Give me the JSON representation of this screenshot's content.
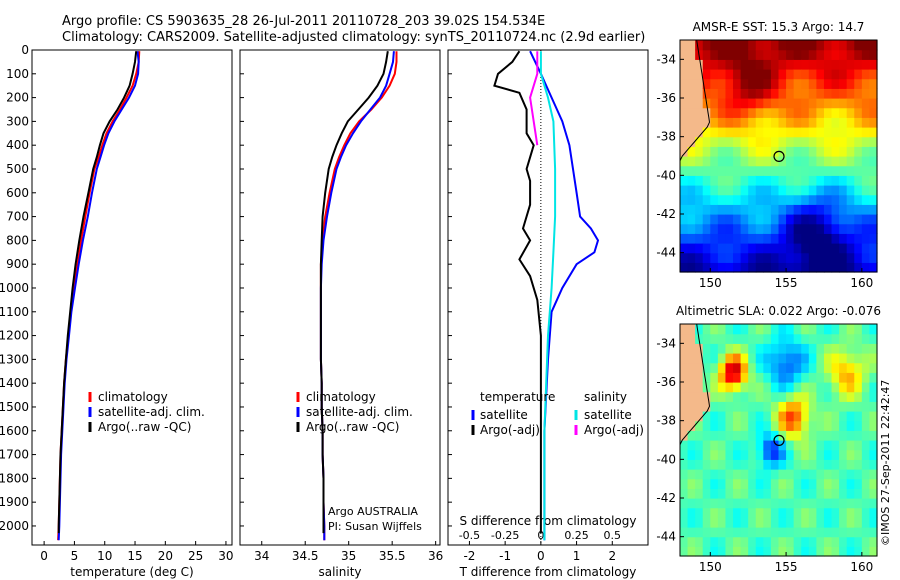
{
  "header": {
    "title_line1": "Argo profile: CS 5903635_28 26-Jul-2011 20110728_203 39.02S 154.534E",
    "title_line2": "Climatology: CARS2009. Satellite-adjusted climatology: synTS_20110724.nc (2.9d earlier)"
  },
  "credits": {
    "agency": "Argo AUSTRALIA",
    "pi": "PI: Susan Wijffels",
    "stamp": "©IMOS 27-Sep-2011 22:42:47"
  },
  "colors": {
    "climatology": "#ff0000",
    "satellite": "#0000ff",
    "argo": "#000000",
    "temp_sat": "#0000ff",
    "temp_argo": "#000000",
    "sal_sat": "#00e5e5",
    "sal_argo": "#ff00ff",
    "land": "#f4b98a"
  },
  "chart_data": [
    {
      "id": "temperature",
      "type": "line",
      "xlabel": "temperature (deg C)",
      "ylabel": "",
      "xlim": [
        -2,
        31
      ],
      "ylim": [
        2080,
        0
      ],
      "xticks": [
        0,
        5,
        10,
        15,
        20,
        25,
        30
      ],
      "yticks": [
        0,
        100,
        200,
        300,
        400,
        500,
        600,
        700,
        800,
        900,
        1000,
        1100,
        1200,
        1300,
        1400,
        1500,
        1600,
        1700,
        1800,
        1900,
        2000
      ],
      "legend": [
        "climatology",
        "satellite-adj. clim.",
        "Argo(..raw -QC)"
      ],
      "series": [
        {
          "name": "climatology",
          "color": "#ff0000",
          "points": [
            [
              15.7,
              5
            ],
            [
              15.6,
              50
            ],
            [
              15.2,
              100
            ],
            [
              14.6,
              150
            ],
            [
              13.6,
              200
            ],
            [
              12.5,
              250
            ],
            [
              11.3,
              300
            ],
            [
              10.3,
              350
            ],
            [
              9.6,
              400
            ],
            [
              9.0,
              450
            ],
            [
              8.3,
              500
            ],
            [
              7.5,
              600
            ],
            [
              6.8,
              700
            ],
            [
              6.1,
              800
            ],
            [
              5.5,
              900
            ],
            [
              4.9,
              1000
            ],
            [
              4.4,
              1100
            ],
            [
              4.0,
              1200
            ],
            [
              3.6,
              1300
            ],
            [
              3.3,
              1400
            ],
            [
              3.1,
              1500
            ],
            [
              2.9,
              1600
            ],
            [
              2.7,
              1700
            ],
            [
              2.6,
              1800
            ],
            [
              2.5,
              1900
            ],
            [
              2.4,
              2000
            ],
            [
              2.3,
              2060
            ]
          ]
        },
        {
          "name": "satellite-adj. clim.",
          "color": "#0000ff",
          "points": [
            [
              15.4,
              5
            ],
            [
              15.6,
              50
            ],
            [
              15.5,
              100
            ],
            [
              15.0,
              150
            ],
            [
              14.0,
              200
            ],
            [
              12.8,
              250
            ],
            [
              11.6,
              300
            ],
            [
              10.6,
              350
            ],
            [
              9.9,
              400
            ],
            [
              9.3,
              450
            ],
            [
              8.7,
              500
            ],
            [
              7.9,
              600
            ],
            [
              7.2,
              700
            ],
            [
              6.4,
              800
            ],
            [
              5.7,
              900
            ],
            [
              5.1,
              1000
            ],
            [
              4.5,
              1100
            ],
            [
              4.1,
              1200
            ],
            [
              3.7,
              1300
            ],
            [
              3.4,
              1400
            ],
            [
              3.2,
              1500
            ],
            [
              3.0,
              1600
            ],
            [
              2.8,
              1700
            ],
            [
              2.7,
              1800
            ],
            [
              2.6,
              1900
            ],
            [
              2.5,
              2000
            ],
            [
              2.4,
              2060
            ]
          ]
        },
        {
          "name": "Argo(..raw -QC)",
          "color": "#000000",
          "points": [
            [
              15.2,
              5
            ],
            [
              15.0,
              50
            ],
            [
              14.6,
              100
            ],
            [
              14.1,
              150
            ],
            [
              13.2,
              200
            ],
            [
              12.1,
              250
            ],
            [
              10.8,
              300
            ],
            [
              9.8,
              350
            ],
            [
              9.2,
              400
            ],
            [
              8.7,
              450
            ],
            [
              8.1,
              500
            ],
            [
              7.3,
              600
            ],
            [
              6.5,
              700
            ],
            [
              5.8,
              800
            ],
            [
              5.2,
              900
            ],
            [
              4.7,
              1000
            ],
            [
              4.3,
              1100
            ],
            [
              3.9,
              1200
            ],
            [
              3.6,
              1300
            ],
            [
              3.3,
              1400
            ],
            [
              3.1,
              1500
            ],
            [
              2.9,
              1600
            ],
            [
              2.7,
              1700
            ],
            [
              2.6,
              1800
            ],
            [
              2.5,
              1900
            ],
            [
              2.4,
              2000
            ],
            [
              2.4,
              2030
            ]
          ]
        }
      ]
    },
    {
      "id": "salinity",
      "type": "line",
      "xlabel": "salinity",
      "ylabel": "",
      "xlim": [
        33.75,
        36.05
      ],
      "ylim": [
        2080,
        0
      ],
      "xticks": [
        34,
        34.5,
        35,
        35.5,
        36
      ],
      "legend": [
        "climatology",
        "satellite-adj. clim.",
        "Argo(..raw -QC)"
      ],
      "series": [
        {
          "name": "climatology",
          "color": "#ff0000",
          "points": [
            [
              35.55,
              5
            ],
            [
              35.55,
              50
            ],
            [
              35.53,
              100
            ],
            [
              35.47,
              150
            ],
            [
              35.38,
              200
            ],
            [
              35.26,
              250
            ],
            [
              35.12,
              300
            ],
            [
              35.02,
              350
            ],
            [
              34.95,
              400
            ],
            [
              34.89,
              450
            ],
            [
              34.84,
              500
            ],
            [
              34.78,
              600
            ],
            [
              34.73,
              700
            ],
            [
              34.7,
              800
            ],
            [
              34.68,
              900
            ],
            [
              34.68,
              1000
            ],
            [
              34.68,
              1100
            ],
            [
              34.68,
              1200
            ],
            [
              34.68,
              1300
            ],
            [
              34.69,
              1400
            ],
            [
              34.69,
              1500
            ],
            [
              34.7,
              1600
            ],
            [
              34.7,
              1700
            ],
            [
              34.71,
              1800
            ],
            [
              34.71,
              1900
            ],
            [
              34.72,
              2000
            ],
            [
              34.72,
              2060
            ]
          ]
        },
        {
          "name": "satellite-adj. clim.",
          "color": "#0000ff",
          "points": [
            [
              35.52,
              5
            ],
            [
              35.51,
              50
            ],
            [
              35.47,
              100
            ],
            [
              35.43,
              150
            ],
            [
              35.36,
              200
            ],
            [
              35.25,
              250
            ],
            [
              35.14,
              300
            ],
            [
              35.05,
              350
            ],
            [
              34.97,
              400
            ],
            [
              34.91,
              450
            ],
            [
              34.86,
              500
            ],
            [
              34.8,
              600
            ],
            [
              34.75,
              700
            ],
            [
              34.71,
              800
            ],
            [
              34.69,
              900
            ],
            [
              34.68,
              1000
            ],
            [
              34.68,
              1100
            ],
            [
              34.68,
              1200
            ],
            [
              34.68,
              1300
            ],
            [
              34.69,
              1400
            ],
            [
              34.69,
              1500
            ],
            [
              34.7,
              1600
            ],
            [
              34.7,
              1700
            ],
            [
              34.71,
              1800
            ],
            [
              34.71,
              1900
            ],
            [
              34.72,
              2000
            ],
            [
              34.72,
              2060
            ]
          ]
        },
        {
          "name": "Argo(..raw -QC)",
          "color": "#000000",
          "points": [
            [
              35.45,
              5
            ],
            [
              35.43,
              50
            ],
            [
              35.4,
              100
            ],
            [
              35.33,
              150
            ],
            [
              35.23,
              200
            ],
            [
              35.11,
              250
            ],
            [
              34.99,
              300
            ],
            [
              34.92,
              350
            ],
            [
              34.86,
              400
            ],
            [
              34.81,
              450
            ],
            [
              34.77,
              500
            ],
            [
              34.73,
              600
            ],
            [
              34.7,
              700
            ],
            [
              34.69,
              800
            ],
            [
              34.68,
              900
            ],
            [
              34.68,
              1000
            ],
            [
              34.68,
              1100
            ],
            [
              34.68,
              1200
            ],
            [
              34.68,
              1300
            ],
            [
              34.69,
              1400
            ],
            [
              34.69,
              1500
            ],
            [
              34.7,
              1600
            ],
            [
              34.7,
              1700
            ],
            [
              34.71,
              1800
            ],
            [
              34.71,
              1900
            ],
            [
              34.71,
              2000
            ],
            [
              34.71,
              2030
            ]
          ]
        }
      ]
    },
    {
      "id": "difference",
      "type": "line",
      "xlabel": "T difference from climatology",
      "top_label": "S difference from climatology",
      "xlim": [
        -2.6,
        3.0
      ],
      "ylim": [
        2080,
        0
      ],
      "xticks": [
        -2,
        -1,
        0,
        1,
        2
      ],
      "s_ticks": [
        -0.5,
        -0.25,
        0,
        0.25,
        0.5
      ],
      "s_scale": 4,
      "legend_temperature": {
        "title": "temperature",
        "items": [
          "satellite",
          "Argo(-adj)"
        ]
      },
      "legend_salinity": {
        "title": "salinity",
        "items": [
          "satellite",
          "Argo(-adj)"
        ]
      },
      "series": [
        {
          "name": "temperature satellite",
          "color": "#0000ff",
          "points": [
            [
              -0.3,
              5
            ],
            [
              0.0,
              100
            ],
            [
              0.3,
              200
            ],
            [
              0.6,
              300
            ],
            [
              0.8,
              400
            ],
            [
              0.9,
              500
            ],
            [
              1.0,
              600
            ],
            [
              1.1,
              700
            ],
            [
              1.4,
              750
            ],
            [
              1.6,
              800
            ],
            [
              1.5,
              850
            ],
            [
              1.0,
              900
            ],
            [
              0.6,
              1000
            ],
            [
              0.3,
              1100
            ],
            [
              0.2,
              1300
            ],
            [
              0.1,
              1600
            ],
            [
              0.1,
              2060
            ]
          ]
        },
        {
          "name": "temperature Argo(-adj)",
          "color": "#000000",
          "points": [
            [
              -0.6,
              5
            ],
            [
              -0.8,
              50
            ],
            [
              -1.2,
              100
            ],
            [
              -1.3,
              150
            ],
            [
              -0.6,
              180
            ],
            [
              -0.4,
              250
            ],
            [
              -0.4,
              350
            ],
            [
              -0.2,
              400
            ],
            [
              -0.4,
              500
            ],
            [
              -0.3,
              550
            ],
            [
              -0.3,
              650
            ],
            [
              -0.5,
              750
            ],
            [
              -0.3,
              800
            ],
            [
              -0.6,
              880
            ],
            [
              -0.3,
              950
            ],
            [
              -0.1,
              1050
            ],
            [
              0.0,
              1200
            ],
            [
              0.0,
              1600
            ],
            [
              0.0,
              2030
            ]
          ]
        },
        {
          "name": "salinity satellite",
          "color": "#00e5e5",
          "points": [
            [
              0.0,
              5
            ],
            [
              0.0,
              100
            ],
            [
              0.2,
              200
            ],
            [
              0.35,
              300
            ],
            [
              0.4,
              500
            ],
            [
              0.4,
              700
            ],
            [
              0.35,
              850
            ],
            [
              0.3,
              1000
            ],
            [
              0.2,
              1200
            ],
            [
              0.1,
              1600
            ],
            [
              0.1,
              2060
            ]
          ]
        },
        {
          "name": "salinity Argo(-adj)",
          "color": "#ff00ff",
          "points": [
            [
              -0.1,
              5
            ],
            [
              -0.1,
              100
            ],
            [
              -0.3,
              200
            ],
            [
              -0.2,
              300
            ],
            [
              -0.1,
              400
            ]
          ]
        }
      ]
    }
  ],
  "maps": [
    {
      "id": "sst",
      "type": "heatmap",
      "title": "AMSR-E SST: 15.3 Argo: 14.7",
      "xticks": [
        150,
        155,
        160
      ],
      "yticks": [
        -34,
        -36,
        -38,
        -40,
        -42,
        -44
      ],
      "xlim": [
        148,
        161
      ],
      "ylim": [
        -45,
        -33
      ],
      "marker": [
        154.534,
        -39.02
      ]
    },
    {
      "id": "sla",
      "type": "heatmap",
      "title": "Altimetric SLA: 0.022 Argo: -0.076",
      "xticks": [
        150,
        155,
        160
      ],
      "yticks": [
        -34,
        -36,
        -38,
        -40,
        -42,
        -44
      ],
      "xlim": [
        148,
        161
      ],
      "ylim": [
        -45,
        -33
      ],
      "marker": [
        154.534,
        -39.02
      ]
    }
  ]
}
